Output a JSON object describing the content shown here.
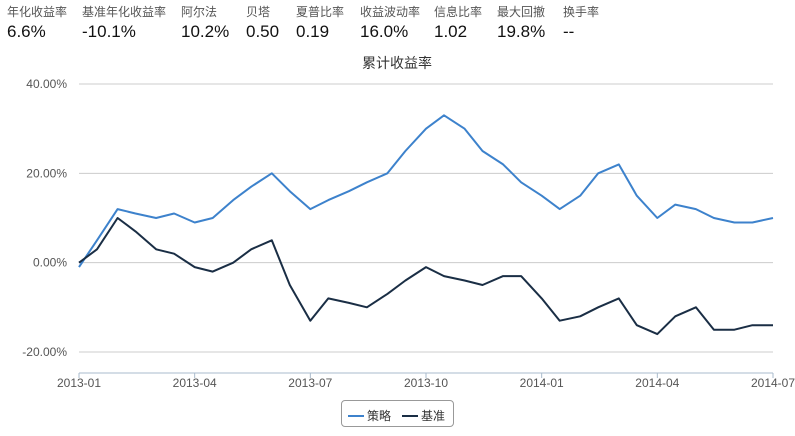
{
  "stats": [
    {
      "label": "年化收益率",
      "value": "6.6%"
    },
    {
      "label": "基准年化收益率",
      "value": "-10.1%"
    },
    {
      "label": "阿尔法",
      "value": "10.2%"
    },
    {
      "label": "贝塔",
      "value": "0.50"
    },
    {
      "label": "夏普比率",
      "value": "0.19"
    },
    {
      "label": "收益波动率",
      "value": "16.0%"
    },
    {
      "label": "信息比率",
      "value": "1.02"
    },
    {
      "label": "最大回撤",
      "value": "19.8%"
    },
    {
      "label": "换手率",
      "value": "--"
    }
  ],
  "chart_data": {
    "type": "line",
    "title": "累计收益率",
    "xlabel": "",
    "ylabel": "",
    "ylim": [
      -0.24,
      0.42
    ],
    "y_ticks": [
      -0.2,
      0,
      0.2,
      0.4
    ],
    "y_tick_labels": [
      "-20.00%",
      "0.00%",
      "20.00%",
      "40.00%"
    ],
    "x_ticks": [
      "2013-01",
      "2013-04",
      "2013-07",
      "2013-10",
      "2014-01",
      "2014-04",
      "2014-07"
    ],
    "x_range": [
      "2013-01",
      "2014-07"
    ],
    "grid": "horizontal",
    "legend_position": "bottom-center",
    "series": [
      {
        "name": "策略",
        "color": "#3d82cc",
        "x": [
          "2013-01",
          "2013-01-15",
          "2013-02",
          "2013-02-15",
          "2013-03",
          "2013-03-15",
          "2013-04",
          "2013-04-15",
          "2013-05",
          "2013-05-15",
          "2013-06",
          "2013-06-15",
          "2013-07",
          "2013-07-15",
          "2013-08",
          "2013-08-15",
          "2013-09",
          "2013-09-15",
          "2013-10",
          "2013-10-15",
          "2013-11",
          "2013-11-15",
          "2013-12",
          "2013-12-15",
          "2014-01",
          "2014-01-15",
          "2014-02",
          "2014-02-15",
          "2014-03",
          "2014-03-15",
          "2014-04",
          "2014-04-15",
          "2014-05",
          "2014-05-15",
          "2014-06",
          "2014-06-15",
          "2014-07"
        ],
        "values": [
          -0.01,
          0.05,
          0.12,
          0.11,
          0.1,
          0.11,
          0.09,
          0.1,
          0.14,
          0.17,
          0.2,
          0.16,
          0.12,
          0.14,
          0.16,
          0.18,
          0.2,
          0.25,
          0.3,
          0.33,
          0.3,
          0.25,
          0.22,
          0.18,
          0.15,
          0.12,
          0.15,
          0.2,
          0.22,
          0.15,
          0.1,
          0.13,
          0.12,
          0.1,
          0.09,
          0.09,
          0.1
        ]
      },
      {
        "name": "基准",
        "color": "#1a2e45",
        "x": [
          "2013-01",
          "2013-01-15",
          "2013-02",
          "2013-02-15",
          "2013-03",
          "2013-03-15",
          "2013-04",
          "2013-04-15",
          "2013-05",
          "2013-05-15",
          "2013-06",
          "2013-06-15",
          "2013-07",
          "2013-07-15",
          "2013-08",
          "2013-08-15",
          "2013-09",
          "2013-09-15",
          "2013-10",
          "2013-10-15",
          "2013-11",
          "2013-11-15",
          "2013-12",
          "2013-12-15",
          "2014-01",
          "2014-01-15",
          "2014-02",
          "2014-02-15",
          "2014-03",
          "2014-03-15",
          "2014-04",
          "2014-04-15",
          "2014-05",
          "2014-05-15",
          "2014-06",
          "2014-06-15",
          "2014-07"
        ],
        "values": [
          0.0,
          0.03,
          0.1,
          0.07,
          0.03,
          0.02,
          -0.01,
          -0.02,
          0.0,
          0.03,
          0.05,
          -0.05,
          -0.13,
          -0.08,
          -0.09,
          -0.1,
          -0.07,
          -0.04,
          -0.01,
          -0.03,
          -0.04,
          -0.05,
          -0.03,
          -0.03,
          -0.08,
          -0.13,
          -0.12,
          -0.1,
          -0.08,
          -0.14,
          -0.16,
          -0.12,
          -0.1,
          -0.15,
          -0.15,
          -0.14,
          -0.14
        ]
      }
    ]
  }
}
